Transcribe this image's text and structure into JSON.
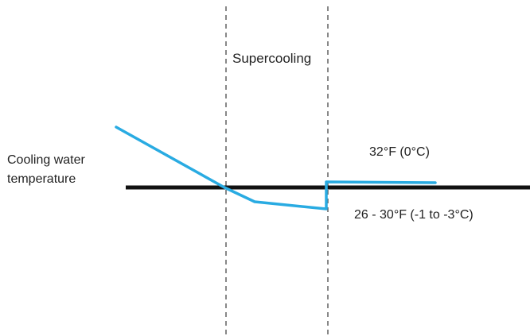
{
  "diagram": {
    "region_label": "Supercooling",
    "axis_label": {
      "line1": "Cooling water",
      "line2": "temperature"
    },
    "freezing_point_label": "32°F (0°C)",
    "supercooled_range_label": "26 - 30°F (-1 to -3°C)",
    "colors": {
      "temperature_curve": "#29abe2",
      "reference_line": "#111111",
      "phase_dividers": "#555555",
      "text": "#222222"
    }
  }
}
